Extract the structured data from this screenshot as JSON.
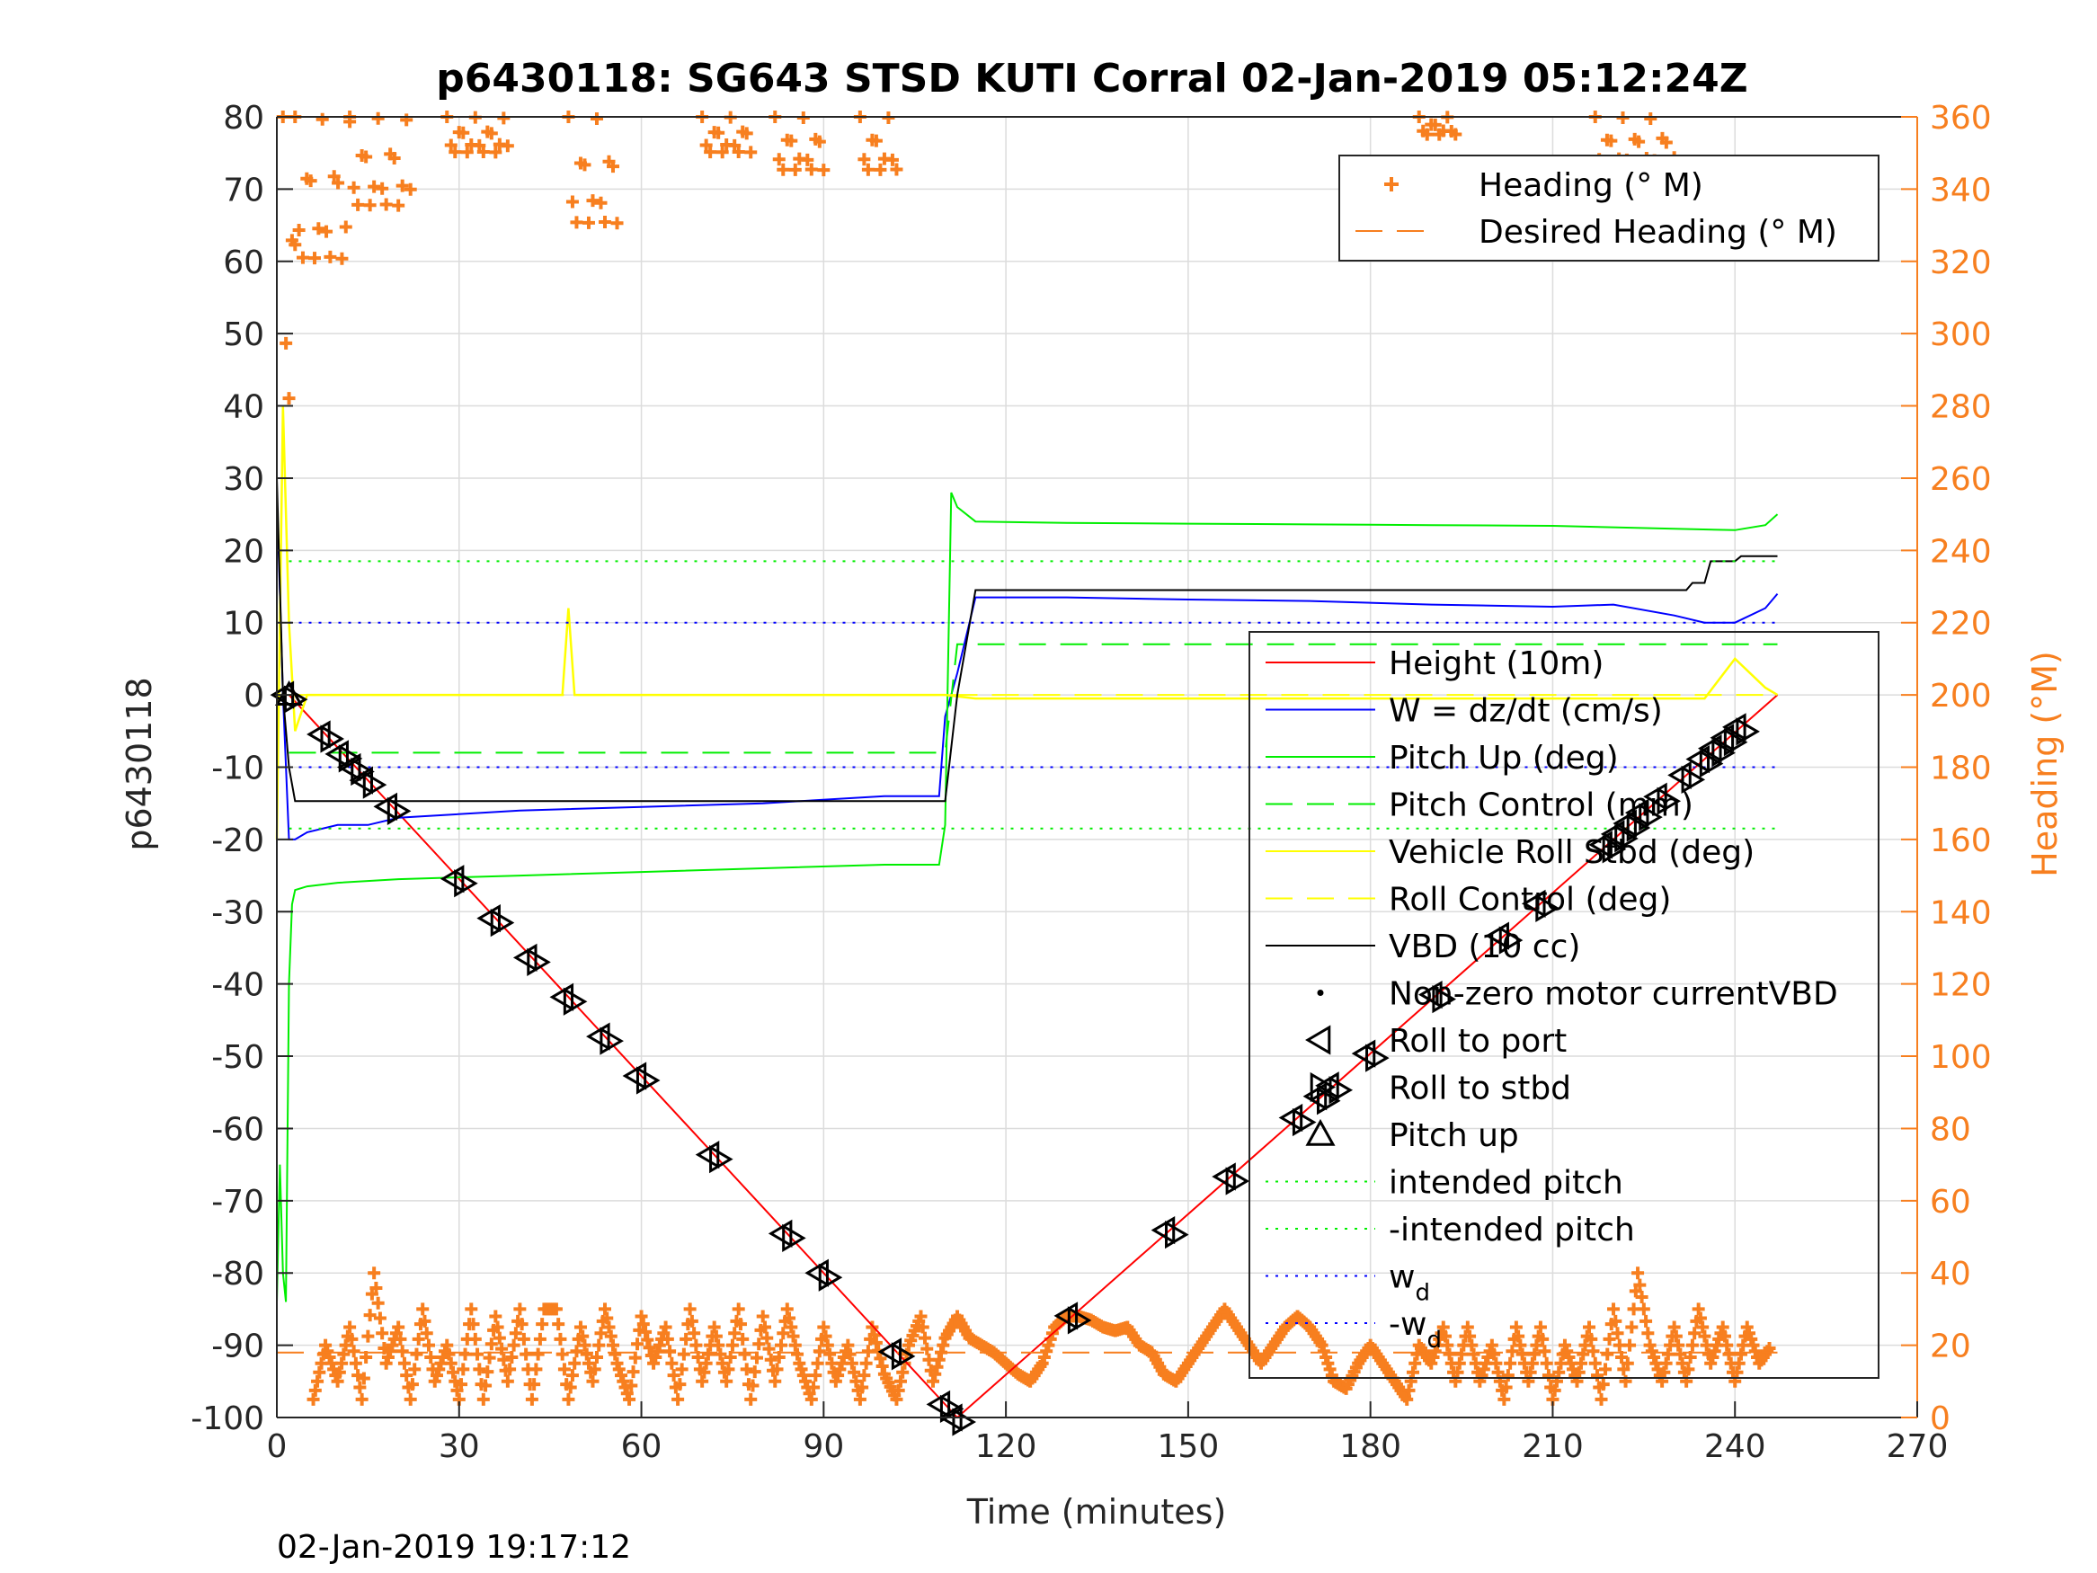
{
  "chart_data": {
    "type": "line",
    "title": "p6430118: SG643 STSD KUTI Corral 02-Jan-2019 05:12:24Z",
    "xlabel": "Time (minutes)",
    "ylabel": "p6430118",
    "y2label": "Heading (°M)",
    "timestamp": "02-Jan-2019 19:17:12",
    "xlim": [
      0,
      270
    ],
    "ylim": [
      -100,
      80
    ],
    "y2lim": [
      0,
      360
    ],
    "x_ticks": [
      0,
      30,
      60,
      90,
      120,
      150,
      180,
      210,
      240,
      270
    ],
    "y_ticks": [
      -100,
      -90,
      -80,
      -70,
      -60,
      -50,
      -40,
      -30,
      -20,
      -10,
      0,
      10,
      20,
      30,
      40,
      50,
      60,
      70,
      80
    ],
    "y2_ticks": [
      0,
      20,
      40,
      60,
      80,
      100,
      120,
      140,
      160,
      180,
      200,
      220,
      240,
      260,
      280,
      300,
      320,
      340,
      360
    ],
    "grid": true,
    "legends": [
      {
        "placement": "top-right",
        "entries": [
          {
            "label": "Heading (° M)",
            "color": "#f77f1f",
            "style": "plus"
          },
          {
            "label": "Desired Heading (° M)",
            "color": "#f77f1f",
            "style": "dashed"
          }
        ]
      },
      {
        "placement": "center-right",
        "entries": [
          {
            "label": "Height (10m)",
            "color": "#ff0000",
            "style": "solid"
          },
          {
            "label": "W = dz/dt (cm/s)",
            "color": "#0000ff",
            "style": "solid"
          },
          {
            "label": "Pitch Up (deg)",
            "color": "#00ee00",
            "style": "solid"
          },
          {
            "label": "Pitch Control (mm)",
            "color": "#00ee00",
            "style": "dashed"
          },
          {
            "label": "Vehicle Roll Stbd (deg)",
            "color": "#ffff00",
            "style": "solid"
          },
          {
            "label": "Roll Control (deg)",
            "color": "#ffff00",
            "style": "dashed"
          },
          {
            "label": "VBD (10 cc)",
            "color": "#000000",
            "style": "solid"
          },
          {
            "label": "Non-zero motor currentVBD",
            "color": "#000000",
            "style": "dot"
          },
          {
            "label": "Roll to port",
            "color": "#000000",
            "style": "tri-left"
          },
          {
            "label": "Roll to stbd",
            "color": "#000000",
            "style": "tri-right"
          },
          {
            "label": "Pitch up",
            "color": "#000000",
            "style": "tri-up"
          },
          {
            "label": "intended pitch",
            "color": "#00ee00",
            "style": "dotted"
          },
          {
            "label": "-intended pitch",
            "color": "#00ee00",
            "style": "dotted"
          },
          {
            "label": "w",
            "sub": "d",
            "color": "#0000ff",
            "style": "dotted"
          },
          {
            "label": "-w",
            "sub": "d",
            "color": "#0000ff",
            "style": "dotted"
          }
        ]
      }
    ],
    "series": [
      {
        "name": "Height (10m)",
        "color": "#ff0000",
        "axis": "left",
        "x": [
          2,
          112,
          247
        ],
        "y": [
          0,
          -100,
          0
        ]
      },
      {
        "name": "W = dz/dt (cm/s)",
        "color": "#0000ff",
        "axis": "left",
        "x": [
          0,
          1,
          2,
          3,
          5,
          10,
          15,
          20,
          40,
          60,
          80,
          100,
          109,
          110,
          112,
          114,
          115,
          130,
          150,
          170,
          190,
          210,
          220,
          230,
          235,
          240,
          245,
          247
        ],
        "y": [
          28,
          0,
          -20,
          -20,
          -19,
          -18,
          -18,
          -17,
          -16,
          -15.5,
          -15,
          -14,
          -14,
          -3,
          3,
          10,
          13.5,
          13.5,
          13.2,
          13,
          12.5,
          12.2,
          12.5,
          11,
          10,
          10,
          12,
          14
        ]
      },
      {
        "name": "Pitch Up (deg)",
        "color": "#00ee00",
        "axis": "left",
        "x": [
          0,
          0.5,
          1,
          1.5,
          2,
          2.5,
          3,
          5,
          10,
          20,
          40,
          60,
          80,
          100,
          109,
          110,
          111,
          112,
          115,
          130,
          150,
          170,
          190,
          210,
          230,
          240,
          245,
          247
        ],
        "y": [
          -84,
          -65,
          -80,
          -84,
          -40,
          -29,
          -27,
          -26.5,
          -26,
          -25.5,
          -25,
          -24.5,
          -24,
          -23.5,
          -23.5,
          -18,
          28,
          26,
          24,
          23.8,
          23.7,
          23.6,
          23.5,
          23.4,
          23,
          22.8,
          23.5,
          25
        ]
      },
      {
        "name": "Pitch Control (mm)",
        "color": "#00ee00",
        "axis": "left",
        "dashed": true,
        "x": [
          2,
          110,
          112,
          247
        ],
        "y": [
          -8,
          -8,
          7,
          7
        ]
      },
      {
        "name": "Vehicle Roll Stbd (deg)",
        "color": "#ffff00",
        "axis": "left",
        "x": [
          0,
          1,
          2,
          3,
          5,
          15,
          30,
          47,
          48,
          49,
          60,
          80,
          100,
          110,
          115,
          130,
          150,
          160,
          180,
          200,
          220,
          235,
          240,
          245,
          247
        ],
        "y": [
          -20,
          40,
          10,
          -5,
          0,
          0,
          0,
          0,
          12,
          0,
          0,
          0,
          0,
          0,
          -0.5,
          -0.5,
          -0.5,
          -0.5,
          -0.5,
          -0.5,
          -0.5,
          -0.5,
          5,
          1,
          0
        ]
      },
      {
        "name": "Roll Control (deg)",
        "color": "#ffff00",
        "axis": "left",
        "dashed": true,
        "x": [
          2,
          247
        ],
        "y": [
          0,
          0
        ]
      },
      {
        "name": "VBD (10 cc)",
        "color": "#000000",
        "axis": "left",
        "x": [
          0,
          1,
          2,
          3,
          110,
          112,
          115,
          232,
          233,
          235,
          236,
          240,
          241,
          247
        ],
        "y": [
          30,
          0,
          -10,
          -14.7,
          -14.7,
          0,
          14.5,
          14.5,
          15.5,
          15.5,
          18.5,
          18.5,
          19.2,
          19.2
        ]
      },
      {
        "name": "intended pitch",
        "color": "#00ee00",
        "axis": "left",
        "dotted": true,
        "x": [
          2,
          247
        ],
        "y": [
          18.5,
          18.5
        ]
      },
      {
        "name": "-intended pitch",
        "color": "#00ee00",
        "axis": "left",
        "dotted": true,
        "x": [
          2,
          247
        ],
        "y": [
          -18.5,
          -18.5
        ]
      },
      {
        "name": "w",
        "color": "#0000ff",
        "axis": "left",
        "dotted": true,
        "x": [
          2,
          247
        ],
        "y": [
          10,
          10
        ]
      },
      {
        "name": "-w",
        "color": "#0000ff",
        "axis": "left",
        "dotted": true,
        "x": [
          2,
          247
        ],
        "y": [
          -10,
          -10
        ]
      },
      {
        "name": "Desired Heading (° M)",
        "color": "#f77f1f",
        "axis": "right",
        "dashed": true,
        "x": [
          0,
          247
        ],
        "y": [
          18,
          18
        ]
      }
    ],
    "heading_bands": [
      {
        "x0": 1,
        "x1": 3,
        "lo": 280,
        "hi": 360
      },
      {
        "x0": 3,
        "x1": 12,
        "lo": 320,
        "hi": 360
      },
      {
        "x0": 12,
        "x1": 22,
        "lo": 335,
        "hi": 360
      },
      {
        "x0": 28,
        "x1": 38,
        "lo": 350,
        "hi": 360
      },
      {
        "x0": 48,
        "x1": 56,
        "lo": 330,
        "hi": 360
      },
      {
        "x0": 70,
        "x1": 78,
        "lo": 350,
        "hi": 360
      },
      {
        "x0": 82,
        "x1": 90,
        "lo": 345,
        "hi": 360
      },
      {
        "x0": 96,
        "x1": 102,
        "lo": 345,
        "hi": 360
      },
      {
        "x0": 188,
        "x1": 194,
        "lo": 355,
        "hi": 360
      },
      {
        "x0": 217,
        "x1": 230,
        "lo": 345,
        "hi": 360
      }
    ],
    "heading_low": {
      "x": [
        6,
        8,
        10,
        12,
        14,
        16,
        18,
        20,
        22,
        24,
        26,
        28,
        30,
        32,
        34,
        36,
        38,
        40,
        42,
        44,
        46,
        48,
        50,
        52,
        54,
        56,
        58,
        60,
        62,
        64,
        66,
        68,
        70,
        72,
        74,
        76,
        78,
        80,
        82,
        84,
        86,
        88,
        90,
        92,
        94,
        96,
        98,
        100,
        102,
        104,
        106,
        108,
        110,
        112,
        114,
        116,
        118,
        120,
        122,
        124,
        126,
        128,
        130,
        132,
        134,
        136,
        138,
        140,
        142,
        144,
        146,
        148,
        150,
        152,
        154,
        156,
        158,
        160,
        162,
        164,
        166,
        168,
        170,
        172,
        174,
        176,
        178,
        180,
        182,
        184,
        186,
        188,
        190,
        192,
        194,
        196,
        198,
        200,
        202,
        204,
        206,
        208,
        210,
        212,
        214,
        216,
        218,
        220,
        222,
        224,
        226,
        228,
        230,
        232,
        234,
        236,
        238,
        240,
        242,
        244,
        246
      ],
      "y": [
        5,
        20,
        10,
        25,
        5,
        40,
        15,
        25,
        5,
        30,
        10,
        20,
        5,
        30,
        5,
        28,
        10,
        30,
        5,
        30,
        30,
        5,
        25,
        10,
        30,
        15,
        5,
        28,
        15,
        25,
        5,
        30,
        10,
        25,
        10,
        30,
        5,
        28,
        10,
        30,
        15,
        5,
        25,
        10,
        20,
        5,
        25,
        12,
        5,
        20,
        28,
        10,
        22,
        28,
        22,
        20,
        18,
        15,
        12,
        10,
        15,
        25,
        28,
        28,
        27,
        25,
        24,
        25,
        20,
        18,
        12,
        10,
        15,
        20,
        25,
        30,
        25,
        20,
        15,
        20,
        25,
        28,
        25,
        20,
        10,
        8,
        15,
        20,
        15,
        10,
        5,
        20,
        15,
        25,
        10,
        25,
        10,
        20,
        5,
        25,
        10,
        25,
        5,
        20,
        10,
        25,
        5,
        30,
        10,
        40,
        20,
        10,
        25,
        10,
        30,
        15,
        25,
        10,
        25,
        15,
        20
      ]
    },
    "markers_down": [
      2,
      8,
      11,
      13,
      15,
      19,
      30,
      36,
      42,
      48,
      54,
      60,
      72,
      84,
      90,
      102,
      110
    ],
    "markers_up": [
      112,
      131,
      147,
      157,
      168,
      172,
      174,
      180,
      191,
      202,
      208,
      219,
      221,
      223,
      225,
      228,
      232,
      235,
      237,
      239,
      241
    ]
  }
}
